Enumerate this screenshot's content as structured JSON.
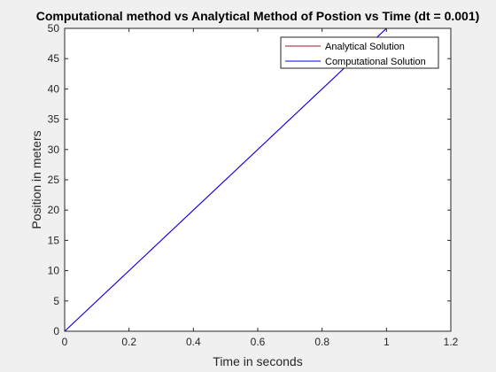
{
  "chart_data": {
    "type": "line",
    "title": "Computational method vs Analytical Method of Postion vs Time (dt = 0.001)",
    "xlabel": "Time in seconds",
    "ylabel": "Position in meters",
    "xlim": [
      0,
      1.2
    ],
    "ylim": [
      0,
      50
    ],
    "xticks": [
      "0",
      "0.2",
      "0.4",
      "0.6",
      "0.8",
      "1",
      "1.2"
    ],
    "yticks": [
      "0",
      "5",
      "10",
      "15",
      "20",
      "25",
      "30",
      "35",
      "40",
      "45",
      "50"
    ],
    "grid": false,
    "legend_position": "top-right",
    "series": [
      {
        "name": "Analytical Solution",
        "color": "#a2142f",
        "x": [
          0,
          1
        ],
        "y": [
          0,
          50
        ]
      },
      {
        "name": "Computational Solution",
        "color": "#0000ff",
        "x": [
          0,
          1
        ],
        "y": [
          0,
          50
        ]
      }
    ]
  }
}
